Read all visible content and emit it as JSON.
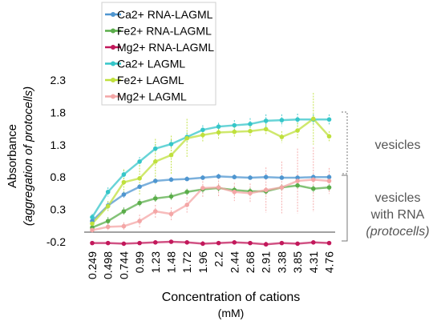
{
  "chart_data": {
    "type": "line",
    "xlabel": "Concentration of cations",
    "xlabel_unit": "(mM)",
    "ylabel_main": "Absorbance",
    "ylabel_sub": "(aggregation of protocells)",
    "categories": [
      "0.249",
      "0.498",
      "0.744",
      "0.99",
      "1.23",
      "1.48",
      "1.72",
      "1.96",
      "2.2",
      "2.44",
      "2.68",
      "2.91",
      "3.38",
      "3.85",
      "4.31",
      "4.76"
    ],
    "yticks": [
      "2.3",
      "1.8",
      "1.3",
      "0.8",
      "0.3",
      "-0.2"
    ],
    "ylim": [
      -0.2,
      2.3
    ],
    "grid": false,
    "legend_position": "top-left",
    "series": [
      {
        "name": "Ca2+ RNA-LAGML",
        "color": "#4f96d0",
        "values": [
          0.12,
          0.36,
          0.53,
          0.65,
          0.74,
          0.76,
          0.77,
          0.79,
          0.81,
          0.8,
          0.79,
          0.8,
          0.79,
          0.79,
          0.8,
          0.8
        ],
        "err": [
          0.05,
          0.06,
          0.05,
          0.04,
          0.04,
          0.04,
          0.04,
          0.04,
          0.04,
          0.04,
          0.04,
          0.04,
          0.04,
          0.04,
          0.04,
          0.04
        ]
      },
      {
        "name": "Fe2+ RNA-LAGML",
        "color": "#5aad4a",
        "values": [
          0.02,
          0.12,
          0.27,
          0.4,
          0.47,
          0.5,
          0.57,
          0.61,
          0.63,
          0.6,
          0.58,
          0.58,
          0.64,
          0.67,
          0.62,
          0.64
        ],
        "err": [
          0.04,
          0.06,
          0.06,
          0.06,
          0.06,
          0.06,
          0.05,
          0.05,
          0.05,
          0.05,
          0.05,
          0.06,
          0.05,
          0.05,
          0.05,
          0.05
        ]
      },
      {
        "name": "Mg2+ RNA-LAGML",
        "color": "#c2185b",
        "values": [
          -0.22,
          -0.22,
          -0.23,
          -0.22,
          -0.21,
          -0.2,
          -0.21,
          -0.23,
          -0.22,
          -0.21,
          -0.22,
          -0.24,
          -0.22,
          -0.23,
          -0.21,
          -0.22
        ],
        "err": [
          0.03,
          0.03,
          0.03,
          0.03,
          0.03,
          0.03,
          0.03,
          0.04,
          0.03,
          0.03,
          0.03,
          0.04,
          0.03,
          0.03,
          0.03,
          0.03
        ]
      },
      {
        "name": "Ca2+ LAGML",
        "color": "#35c6c9",
        "values": [
          0.18,
          0.57,
          0.84,
          1.04,
          1.24,
          1.31,
          1.42,
          1.53,
          1.58,
          1.6,
          1.62,
          1.67,
          1.68,
          1.69,
          1.69,
          1.69
        ],
        "err": [
          0.05,
          0.07,
          0.07,
          0.07,
          0.07,
          0.07,
          0.07,
          0.07,
          0.06,
          0.08,
          0.09,
          0.1,
          0.09,
          0.09,
          0.08,
          0.08
        ]
      },
      {
        "name": "Fe2+ LAGML",
        "color": "#bfe03c",
        "values": [
          0.08,
          0.35,
          0.72,
          0.78,
          1.04,
          1.14,
          1.4,
          1.45,
          1.49,
          1.5,
          1.51,
          1.54,
          1.42,
          1.52,
          1.7,
          1.43
        ],
        "err": [
          0.06,
          0.08,
          0.2,
          0.25,
          0.35,
          0.3,
          0.3,
          0.1,
          0.1,
          0.08,
          0.08,
          0.08,
          0.09,
          0.12,
          0.4,
          0.08
        ]
      },
      {
        "name": "Mg2+ LAGML",
        "color": "#f4a6a6",
        "values": [
          -0.02,
          0.03,
          0.04,
          0.12,
          0.27,
          0.23,
          0.37,
          0.63,
          0.64,
          0.57,
          0.55,
          0.6,
          0.64,
          0.74,
          0.76,
          0.74
        ],
        "err": [
          0.03,
          0.05,
          0.06,
          0.1,
          0.1,
          0.1,
          0.12,
          0.15,
          0.15,
          0.14,
          0.15,
          0.35,
          0.4,
          0.5,
          0.5,
          0.2
        ]
      }
    ],
    "annotations": {
      "vesicles": "vesicles",
      "vesicles_rna_line1": "vesicles",
      "vesicles_rna_line2": "with RNA",
      "vesicles_rna_line3": "(protocells)"
    }
  }
}
